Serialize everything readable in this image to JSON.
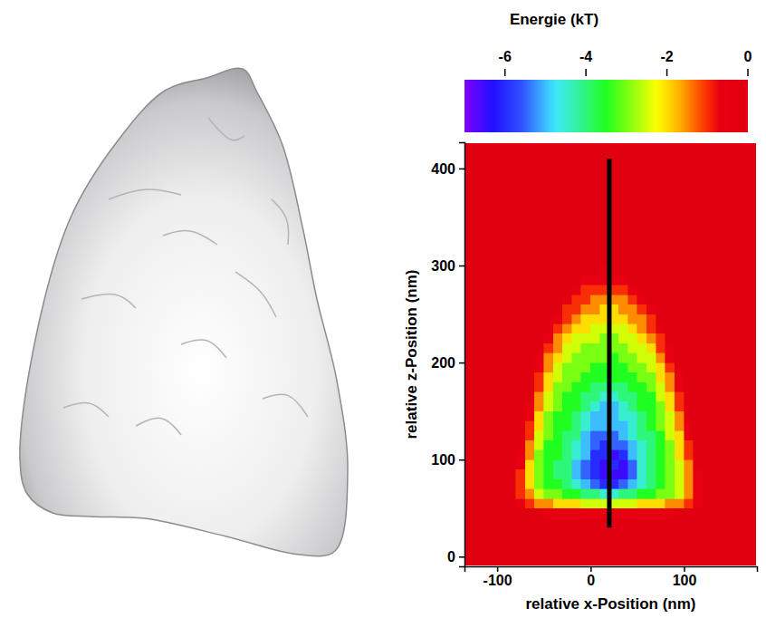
{
  "chart_data": {
    "type": "heatmap",
    "x_label": "relative x-Position (nm)",
    "y_label": "relative z-Position (nm)",
    "xlim": [
      -135,
      178
    ],
    "ylim": [
      -10,
      427
    ],
    "xticks": [
      -100,
      0,
      100
    ],
    "yticks": [
      0,
      100,
      200,
      300,
      400
    ],
    "colorbar": {
      "title": "Energie (kT)",
      "range": [
        -7,
        0
      ],
      "ticks": [
        -6,
        -4,
        -2,
        0
      ]
    },
    "reference_line": {
      "x": 20,
      "y": [
        30,
        410
      ]
    },
    "heatmap": {
      "x_edges": [
        -90,
        -80,
        -70,
        -60,
        -50,
        -40,
        -30,
        -20,
        -10,
        0,
        10,
        20,
        30,
        40,
        50,
        60,
        70,
        80,
        90,
        100,
        110,
        120,
        130
      ],
      "y_edges": [
        40,
        50,
        60,
        70,
        80,
        90,
        100,
        110,
        120,
        130,
        140,
        150,
        160,
        170,
        180,
        190,
        200,
        210,
        220,
        230,
        240,
        250,
        260,
        270,
        280,
        290,
        300
      ],
      "values": [
        [
          0,
          0,
          0,
          0,
          -0.5,
          -0.5,
          -0.5,
          -0.5,
          -0.5,
          -0.5,
          -0.5,
          -0.5,
          -0.5,
          -0.5,
          -0.5,
          -0.5,
          -0.5,
          -0.5,
          0,
          0,
          0,
          0
        ],
        [
          0,
          -0.5,
          -1,
          -1.5,
          -1.5,
          -2,
          -2,
          -2,
          -2.5,
          -2.5,
          -2.5,
          -2.5,
          -2.5,
          -2.5,
          -2,
          -2,
          -2,
          -1.5,
          -1.5,
          -1,
          -0.5,
          0
        ],
        [
          0,
          -1,
          -1.5,
          -2.5,
          -3,
          -3,
          -3.5,
          -3.5,
          -4,
          -4,
          -4.5,
          -4.5,
          -4,
          -4,
          -3.5,
          -3.5,
          -3,
          -3,
          -2.5,
          -1.5,
          -0.5,
          0
        ],
        [
          0,
          -1,
          -2,
          -3,
          -3.5,
          -3.5,
          -4,
          -4.5,
          -5,
          -5.5,
          -6,
          -6,
          -5.5,
          -5,
          -4.5,
          -4,
          -3.5,
          -3,
          -2.5,
          -1.5,
          -0.5,
          0
        ],
        [
          0,
          -1,
          -2,
          -3,
          -3.5,
          -4,
          -4,
          -5,
          -5.5,
          -6,
          -6.5,
          -6.5,
          -6.5,
          -5.5,
          -4.5,
          -4,
          -3.5,
          -3,
          -2.5,
          -1.5,
          -0.5,
          0
        ],
        [
          0,
          -0.5,
          -2,
          -3,
          -3.5,
          -4,
          -4,
          -5,
          -5.5,
          -6,
          -6.5,
          -6,
          -6.5,
          -5.5,
          -4.5,
          -4,
          -3.5,
          -3,
          -2.5,
          -1.5,
          0,
          0
        ],
        [
          0,
          -0.5,
          -1.5,
          -3,
          -3.5,
          -3.5,
          -4,
          -4.5,
          -5,
          -6,
          -6,
          -6.5,
          -6,
          -5,
          -4.5,
          -4,
          -3.5,
          -3,
          -2,
          -1,
          0,
          0
        ],
        [
          0,
          0,
          -1.5,
          -2.5,
          -3.5,
          -3.5,
          -4,
          -4.5,
          -5,
          -5.5,
          -6,
          -5.5,
          -5.5,
          -5,
          -4.5,
          -4,
          -3.5,
          -3,
          -2,
          -1,
          0,
          0
        ],
        [
          0,
          0,
          -1,
          -2.5,
          -3,
          -3.5,
          -4,
          -4,
          -5,
          -5.5,
          -5.5,
          -5.5,
          -5,
          -4.5,
          -4,
          -4,
          -3.5,
          -2.5,
          -2,
          -0.5,
          0,
          0
        ],
        [
          0,
          0,
          -1,
          -2,
          -3,
          -3.5,
          -3.5,
          -4,
          -4.5,
          -5,
          -5,
          -5,
          -5,
          -4.5,
          -4,
          -3.5,
          -3,
          -2.5,
          -1.5,
          -0.5,
          0,
          0
        ],
        [
          0,
          0,
          -0.5,
          -2,
          -3,
          -3.5,
          -3.5,
          -4,
          -4.5,
          -5,
          -5,
          -5,
          -4.5,
          -4.5,
          -4,
          -3.5,
          -3,
          -2.5,
          -1.5,
          0,
          0,
          0
        ],
        [
          0,
          0,
          -0.5,
          -1.5,
          -2.5,
          -3,
          -3.5,
          -3.5,
          -4,
          -4.5,
          -5,
          -5,
          -4.5,
          -4,
          -3.5,
          -3.5,
          -3,
          -2,
          -1,
          0,
          0,
          0
        ],
        [
          0,
          0,
          0,
          -1.5,
          -2.5,
          -3,
          -3.5,
          -3.5,
          -4,
          -4,
          -4.5,
          -4.5,
          -4,
          -4,
          -3.5,
          -3.5,
          -2.5,
          -2,
          -1,
          0,
          0,
          0
        ],
        [
          0,
          0,
          0,
          -1,
          -2,
          -3,
          -3,
          -3.5,
          -3.5,
          -4,
          -4,
          -4,
          -4,
          -3.5,
          -3.5,
          -3,
          -2.5,
          -1.5,
          -0.5,
          0,
          0,
          0
        ],
        [
          0,
          0,
          0,
          -1,
          -2,
          -2.5,
          -3,
          -3,
          -3.5,
          -3.5,
          -3.5,
          -3.5,
          -3.5,
          -3.5,
          -3,
          -3,
          -2,
          -1.5,
          -0.5,
          0,
          0,
          0
        ],
        [
          0,
          0,
          0,
          -0.5,
          -1.5,
          -2.5,
          -3,
          -3,
          -3,
          -3.5,
          -3.5,
          -3.5,
          -3.5,
          -3,
          -3,
          -2.5,
          -2,
          -1,
          0,
          0,
          0,
          0
        ],
        [
          0,
          0,
          0,
          -0.5,
          -1.5,
          -2,
          -2.5,
          -3,
          -3,
          -3,
          -3,
          -3.5,
          -3,
          -3,
          -2.5,
          -2.5,
          -1.5,
          -0.5,
          0,
          0,
          0,
          0
        ],
        [
          0,
          0,
          0,
          0,
          -1,
          -1.5,
          -2.5,
          -2.5,
          -3,
          -3,
          -3,
          -3,
          -3,
          -2.5,
          -2.5,
          -2,
          -1,
          -0.5,
          0,
          0,
          0,
          0
        ],
        [
          0,
          0,
          0,
          0,
          -0.5,
          -1.5,
          -2,
          -2.5,
          -2.5,
          -2.5,
          -3,
          -3,
          -2.5,
          -2.5,
          -2,
          -1.5,
          -1,
          0,
          0,
          0,
          0,
          0
        ],
        [
          0,
          0,
          0,
          0,
          0,
          -1,
          -1.5,
          -2,
          -2,
          -2.5,
          -2.5,
          -2.5,
          -2.5,
          -2,
          -1.5,
          -1,
          -0.5,
          0,
          0,
          0,
          0,
          0
        ],
        [
          0,
          0,
          0,
          0,
          0,
          -0.5,
          -1,
          -1.5,
          -2,
          -2,
          -2,
          -2,
          -2,
          -1.5,
          -1.5,
          -1,
          0,
          0,
          0,
          0,
          0,
          0
        ],
        [
          0,
          0,
          0,
          0,
          0,
          0,
          -1,
          -1,
          -1.5,
          -1.5,
          -2,
          -2,
          -1.5,
          -1.5,
          -1,
          -0.5,
          0,
          0,
          0,
          0,
          0,
          0
        ],
        [
          0,
          0,
          0,
          0,
          0,
          0,
          -0.5,
          -1,
          -1,
          -1.5,
          -1.5,
          -1.5,
          -1.5,
          -1,
          -0.5,
          0,
          0,
          0,
          0,
          0,
          0,
          0
        ],
        [
          0,
          0,
          0,
          0,
          0,
          0,
          0,
          -0.5,
          -1,
          -1,
          -1,
          -1,
          -1,
          -0.5,
          0,
          0,
          0,
          0,
          0,
          0,
          0,
          0
        ],
        [
          0,
          0,
          0,
          0,
          0,
          0,
          0,
          0,
          -0.5,
          -0.5,
          -0.5,
          -0.5,
          -0.5,
          0,
          0,
          0,
          0,
          0,
          0,
          0,
          0,
          0
        ],
        [
          0,
          0,
          0,
          0,
          0,
          0,
          0,
          0,
          0,
          0,
          -0.5,
          0,
          0,
          0,
          0,
          0,
          0,
          0,
          0,
          0,
          0,
          0
        ]
      ]
    }
  }
}
